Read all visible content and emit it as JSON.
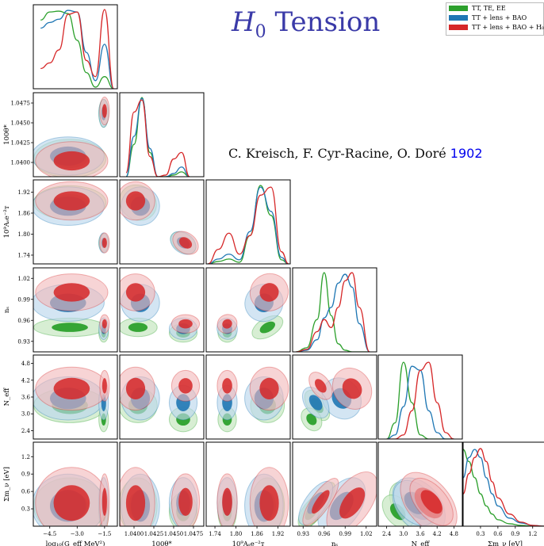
{
  "title_prefix": "H",
  "title_sub": "0",
  "title_suffix": " Tension",
  "authors": "C. Kreisch, F. Cyr-Racine, O. Doré",
  "reference": "1902",
  "colors": {
    "green": "#2ca02c",
    "blue": "#1f77b4",
    "red": "#d62728"
  },
  "chart_data": {
    "type": "corner",
    "series": [
      {
        "name": "TT, TE, EE",
        "color": "#2ca02c"
      },
      {
        "name": "TT + lens + BAO",
        "color": "#1f77b4"
      },
      {
        "name": "TT + lens + BAO + H₀",
        "color": "#d62728"
      }
    ],
    "parameters": [
      {
        "label": "log₁₀(G_eff MeV²)",
        "ylabel": "",
        "range": [
          -5.4,
          -0.8
        ],
        "ticks": [
          -4.5,
          -3.0,
          -1.5
        ],
        "tick_labels": [
          "−4.5",
          "−3.0",
          "−1.5"
        ]
      },
      {
        "label": "100θ*",
        "ylabel": "100θ*",
        "range": [
          1.0382,
          1.0488
        ],
        "ticks": [
          1.04,
          1.0425,
          1.045,
          1.0475
        ],
        "tick_labels": [
          "1.0400",
          "1.0425",
          "1.0450",
          "1.0475"
        ]
      },
      {
        "label": "10⁹Aₛe⁻²ᴛ",
        "ylabel": "10⁹Aₛe⁻²ᴛ",
        "range": [
          1.715,
          1.955
        ],
        "ticks": [
          1.74,
          1.8,
          1.86,
          1.92
        ],
        "tick_labels": [
          "1.74",
          "1.80",
          "1.86",
          "1.92"
        ]
      },
      {
        "label": "nₛ",
        "ylabel": "nₛ",
        "range": [
          0.915,
          1.035
        ],
        "ticks": [
          0.93,
          0.96,
          0.99,
          1.02
        ],
        "tick_labels": [
          "0.93",
          "0.96",
          "0.99",
          "1.02"
        ]
      },
      {
        "label": "N_eff",
        "ylabel": "N_eff",
        "range": [
          2.1,
          5.1
        ],
        "ticks": [
          2.4,
          3.0,
          3.6,
          4.2,
          4.8
        ],
        "tick_labels": [
          "2.4",
          "3.0",
          "3.6",
          "4.2",
          "4.8"
        ]
      },
      {
        "label": "Σm_ν [eV]",
        "ylabel": "Σm_ν [eV]",
        "range": [
          0.0,
          1.45
        ],
        "ticks": [
          0.3,
          0.6,
          0.9,
          1.2
        ],
        "tick_labels": [
          "0.3",
          "0.6",
          "0.9",
          "1.2"
        ]
      }
    ],
    "modes": [
      {
        "mean": [
          -3.4,
          1.0405,
          1.89,
          0.95,
          3.3,
          0.35
        ],
        "spread": [
          0.9,
          0.0011,
          0.022,
          0.006,
          0.28,
          0.22
        ],
        "series": 0
      },
      {
        "mean": [
          -1.55,
          1.0462,
          1.775,
          0.942,
          2.8,
          0.25
        ],
        "spread": [
          0.12,
          0.0008,
          0.012,
          0.006,
          0.2,
          0.15
        ],
        "series": 0
      },
      {
        "mean": [
          -3.5,
          1.0408,
          1.88,
          0.985,
          3.55,
          0.35
        ],
        "spread": [
          0.9,
          0.0011,
          0.025,
          0.012,
          0.35,
          0.25
        ],
        "series": 1
      },
      {
        "mean": [
          -1.55,
          1.0462,
          1.775,
          0.948,
          3.4,
          0.4
        ],
        "spread": [
          0.12,
          0.0008,
          0.013,
          0.007,
          0.28,
          0.2
        ],
        "series": 1
      },
      {
        "mean": [
          -3.3,
          1.0402,
          1.895,
          1.0,
          3.9,
          0.4
        ],
        "spread": [
          0.9,
          0.0011,
          0.025,
          0.012,
          0.35,
          0.28
        ],
        "series": 2
      },
      {
        "mean": [
          -1.5,
          1.0465,
          1.775,
          0.955,
          4.0,
          0.42
        ],
        "spread": [
          0.12,
          0.0008,
          0.013,
          0.006,
          0.25,
          0.22
        ],
        "series": 2
      }
    ],
    "diagonal": [
      {
        "x": [
          -5.0,
          -4.5,
          -4.0,
          -3.5,
          -3.0,
          -2.5,
          -2.0,
          -1.5,
          -1.0
        ],
        "series": [
          {
            "name": "TT, TE, EE",
            "values": [
              0.85,
              0.95,
              0.96,
              0.93,
              0.6,
              0.2,
              0.02,
              0.15,
              0.0
            ]
          },
          {
            "name": "TT + lens + BAO",
            "values": [
              0.75,
              0.82,
              0.86,
              0.97,
              0.95,
              0.45,
              0.1,
              0.55,
              0.0
            ]
          },
          {
            "name": "TT + lens + BAO + H₀",
            "values": [
              0.25,
              0.32,
              0.48,
              0.92,
              0.95,
              0.35,
              0.15,
              0.98,
              0.0
            ]
          }
        ]
      },
      {
        "x": [
          1.039,
          1.04,
          1.041,
          1.042,
          1.043,
          1.044,
          1.045,
          1.046,
          1.047
        ],
        "series": [
          {
            "name": "TT, TE, EE",
            "values": [
              0.0,
              0.4,
              0.98,
              0.3,
              0.0,
              0.0,
              0.02,
              0.06,
              0.0
            ]
          },
          {
            "name": "TT + lens + BAO",
            "values": [
              0.0,
              0.5,
              0.97,
              0.35,
              0.0,
              0.0,
              0.04,
              0.12,
              0.0
            ]
          },
          {
            "name": "TT + lens + BAO + H₀",
            "values": [
              0.05,
              0.8,
              0.95,
              0.25,
              0.0,
              0.02,
              0.22,
              0.3,
              0.0
            ]
          }
        ]
      },
      {
        "x": [
          1.72,
          1.75,
          1.78,
          1.81,
          1.84,
          1.87,
          1.9,
          1.93,
          1.95
        ],
        "series": [
          {
            "name": "TT, TE, EE",
            "values": [
              0.0,
              0.03,
              0.06,
              0.02,
              0.35,
              0.97,
              0.6,
              0.05,
              0.0
            ]
          },
          {
            "name": "TT + lens + BAO",
            "values": [
              0.0,
              0.06,
              0.12,
              0.05,
              0.4,
              0.95,
              0.65,
              0.08,
              0.0
            ]
          },
          {
            "name": "TT + lens + BAO + H₀",
            "values": [
              0.0,
              0.18,
              0.38,
              0.12,
              0.35,
              0.85,
              0.95,
              0.15,
              0.0
            ]
          }
        ]
      },
      {
        "x": [
          0.92,
          0.935,
          0.95,
          0.96,
          0.97,
          0.98,
          0.99,
          1.0,
          1.01,
          1.025
        ],
        "series": [
          {
            "name": "TT, TE, EE",
            "values": [
              0.0,
              0.05,
              0.4,
              0.98,
              0.45,
              0.1,
              0.02,
              0.0,
              0.0,
              0.0
            ]
          },
          {
            "name": "TT + lens + BAO",
            "values": [
              0.0,
              0.02,
              0.15,
              0.42,
              0.55,
              0.85,
              0.96,
              0.8,
              0.35,
              0.0
            ]
          },
          {
            "name": "TT + lens + BAO + H₀",
            "values": [
              0.0,
              0.03,
              0.25,
              0.4,
              0.3,
              0.55,
              0.88,
              0.98,
              0.55,
              0.0
            ]
          }
        ]
      },
      {
        "x": [
          2.4,
          2.7,
          3.0,
          3.3,
          3.6,
          3.9,
          4.2,
          4.5,
          4.8
        ],
        "series": [
          {
            "name": "TT, TE, EE",
            "values": [
              0.0,
              0.2,
              0.95,
              0.45,
              0.05,
              0.0,
              0.0,
              0.0,
              0.0
            ]
          },
          {
            "name": "TT + lens + BAO",
            "values": [
              0.0,
              0.05,
              0.4,
              0.9,
              0.85,
              0.35,
              0.08,
              0.0,
              0.0
            ]
          },
          {
            "name": "TT + lens + BAO + H₀",
            "values": [
              0.0,
              0.0,
              0.05,
              0.35,
              0.85,
              0.95,
              0.45,
              0.08,
              0.0
            ]
          }
        ]
      },
      {
        "x": [
          0.0,
          0.1,
          0.2,
          0.3,
          0.4,
          0.5,
          0.6,
          0.8,
          1.0,
          1.2,
          1.4
        ],
        "series": [
          {
            "name": "TT, TE, EE",
            "values": [
              0.95,
              0.8,
              0.6,
              0.4,
              0.25,
              0.15,
              0.08,
              0.03,
              0.01,
              0.0,
              0.0
            ]
          },
          {
            "name": "TT + lens + BAO",
            "values": [
              0.6,
              0.85,
              0.95,
              0.85,
              0.6,
              0.4,
              0.25,
              0.1,
              0.04,
              0.01,
              0.0
            ]
          },
          {
            "name": "TT + lens + BAO + H₀",
            "values": [
              0.4,
              0.65,
              0.85,
              0.96,
              0.8,
              0.55,
              0.35,
              0.15,
              0.05,
              0.01,
              0.0
            ]
          }
        ]
      }
    ]
  }
}
